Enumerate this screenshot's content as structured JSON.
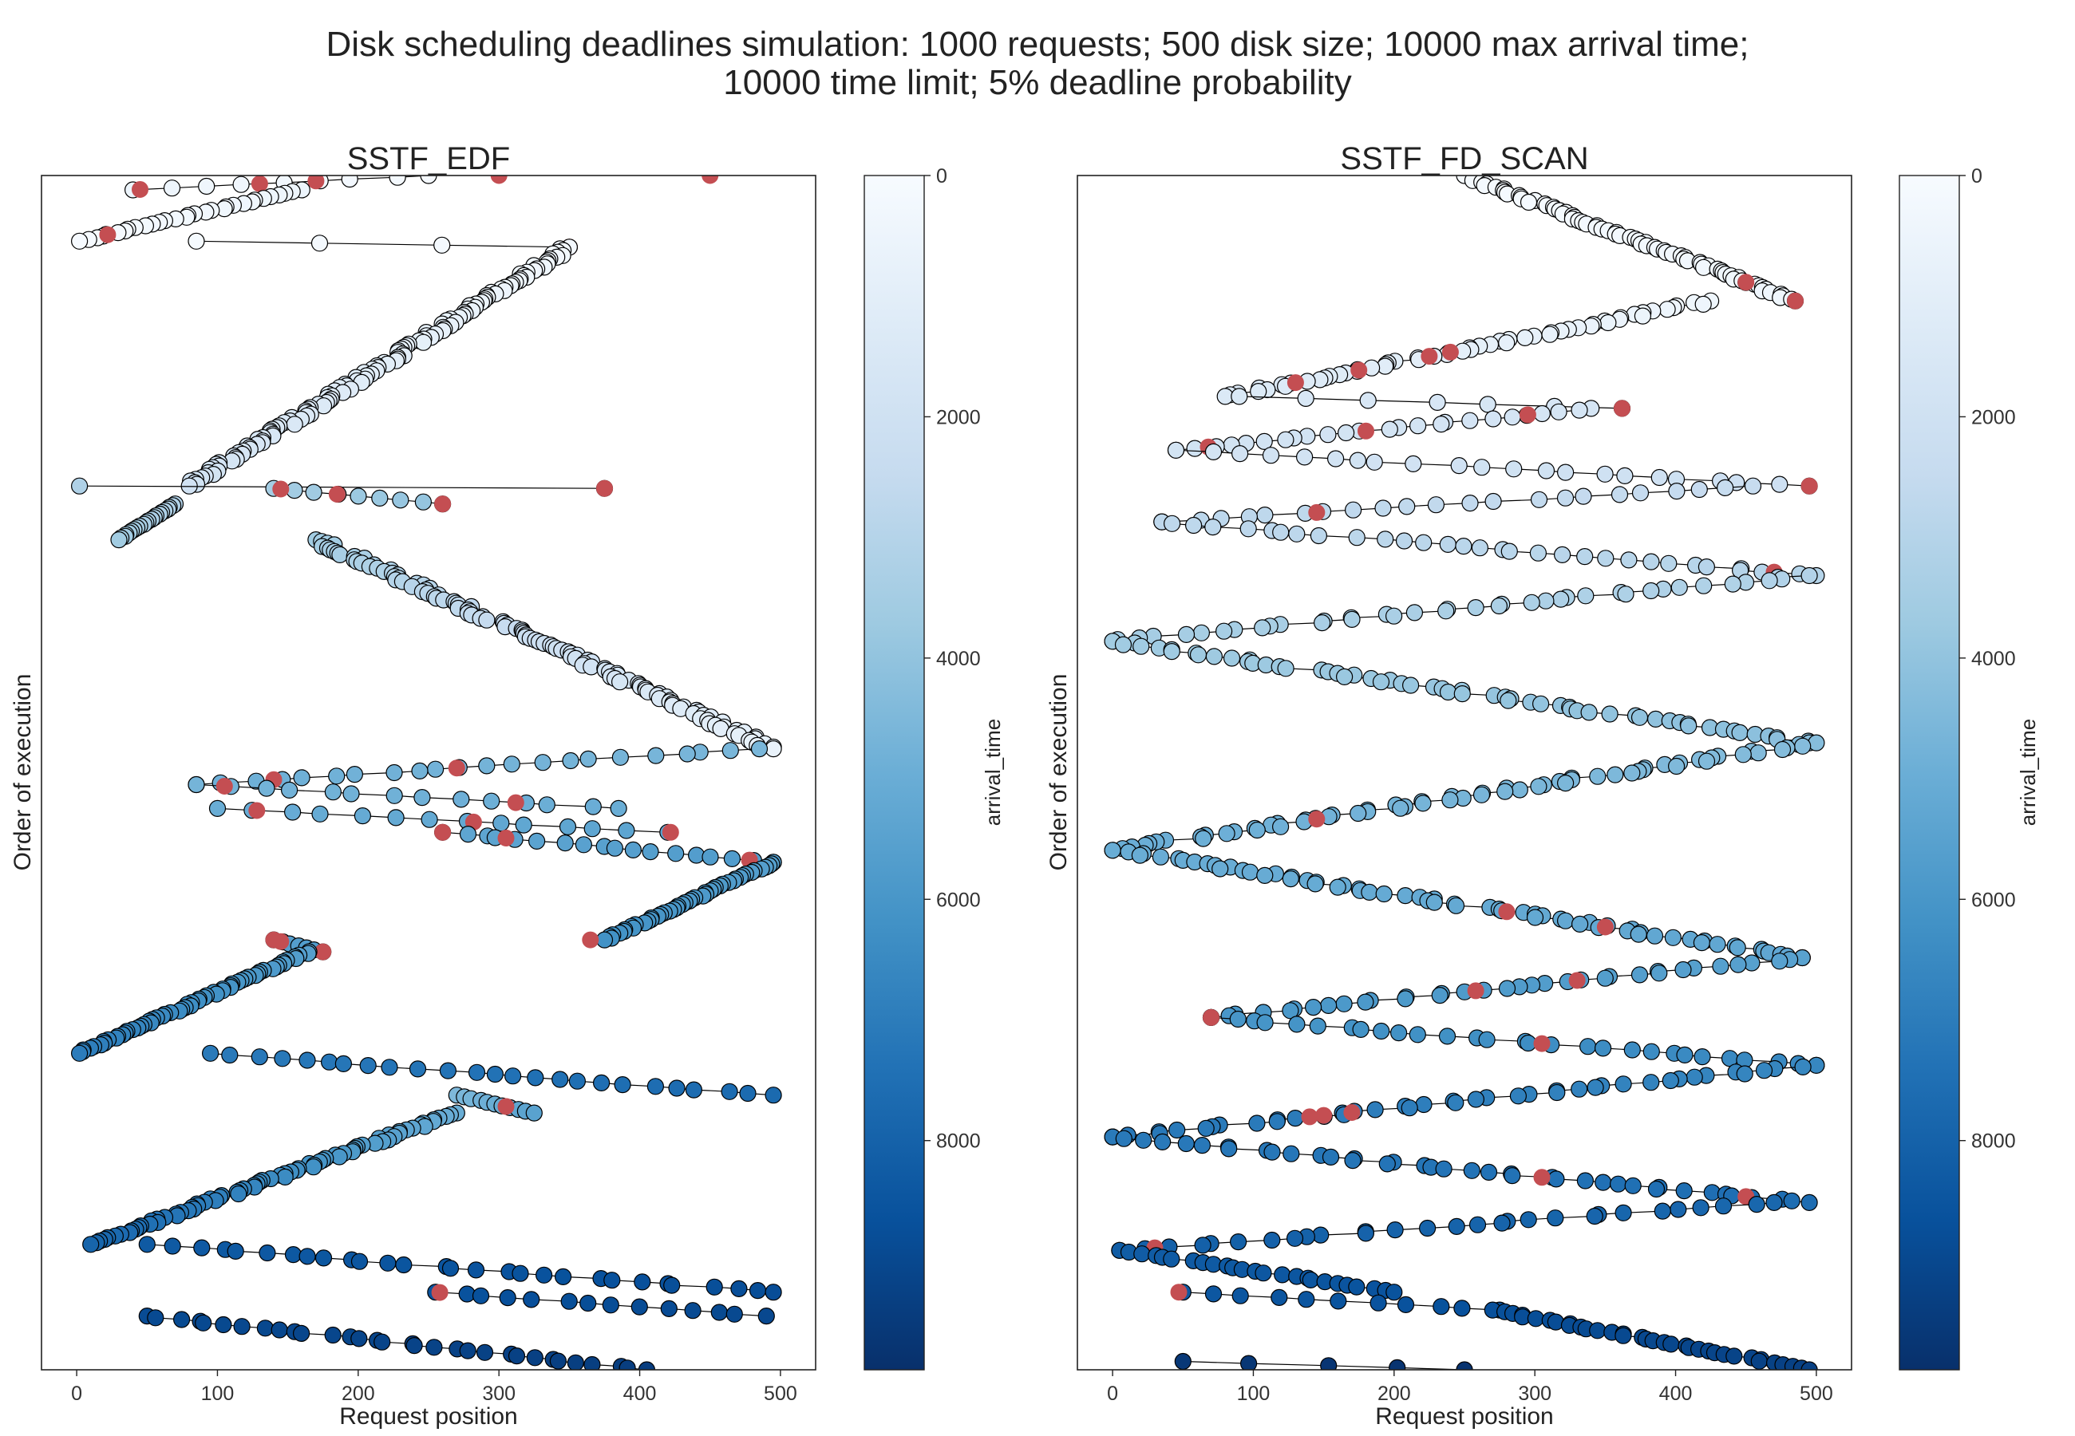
{
  "figure": {
    "title_line1": "Disk scheduling deadlines simulation: 1000 requests; 500 disk size; 10000 max arrival time;",
    "title_line2": "10000 time limit; 5% deadline probability"
  },
  "colors": {
    "deadline_marker": "#c44e52",
    "line": "#000000",
    "marker_edge": "#000000",
    "colormap": [
      "#08306b",
      "#08519c",
      "#2171b5",
      "#4292c6",
      "#6baed6",
      "#9ecae1",
      "#c6dbef",
      "#deebf7",
      "#f7fbff"
    ]
  },
  "chart_data": [
    {
      "type": "scatter",
      "title": "SSTF_EDF",
      "xlabel": "Request position",
      "ylabel": "Order of execution",
      "xlim": [
        -25,
        525
      ],
      "xticks": [
        "0",
        "100",
        "200",
        "300",
        "400",
        "500"
      ],
      "y_inverted": true,
      "ylim": [
        0,
        1000
      ],
      "connected": true,
      "color_by": "arrival_time",
      "colorbar": {
        "label": "arrival_time",
        "range": [
          0,
          9900
        ],
        "ticks": [
          "0",
          "2000",
          "4000",
          "6000",
          "8000"
        ],
        "reversed": true
      },
      "segments": [
        {
          "order": [
            0,
            12
          ],
          "x": [
            250,
            40
          ],
          "arrival": [
            120,
            500
          ],
          "deadline_x": [
            45,
            130,
            170,
            300,
            450
          ]
        },
        {
          "order": [
            12,
            55
          ],
          "x": [
            160,
            2
          ],
          "arrival": [
            500,
            50
          ],
          "deadline_x": [
            22
          ]
        },
        {
          "order": [
            55,
            60
          ],
          "x": [
            85,
            350
          ],
          "arrival": [
            100,
            200
          ],
          "deadline_x": [
            350
          ]
        },
        {
          "order": [
            60,
            260
          ],
          "x": [
            350,
            80
          ],
          "arrival": [
            200,
            1900
          ],
          "deadline_x": []
        },
        {
          "order": [
            260,
            262
          ],
          "x": [
            2,
            375
          ],
          "arrival": [
            3200,
            3800
          ],
          "deadline_x": [
            375
          ]
        },
        {
          "order": [
            262,
            275
          ],
          "x": [
            140,
            260
          ],
          "arrival": [
            3500,
            4000
          ],
          "deadline_x": [
            145,
            185,
            260
          ]
        },
        {
          "order": [
            275,
            305
          ],
          "x": [
            70,
            30
          ],
          "arrival": [
            3100,
            3600
          ],
          "deadline_x": []
        },
        {
          "order": [
            305,
            480
          ],
          "x": [
            170,
            495
          ],
          "arrival": [
            3600,
            700
          ],
          "deadline_x": []
        },
        {
          "order": [
            480,
            510
          ],
          "x": [
            485,
            85
          ],
          "arrival": [
            4600,
            4900
          ],
          "deadline_x": [
            140,
            270
          ]
        },
        {
          "order": [
            510,
            530
          ],
          "x": [
            85,
            385
          ],
          "arrival": [
            4700,
            5000
          ],
          "deadline_x": [
            312,
            105
          ]
        },
        {
          "order": [
            530,
            550
          ],
          "x": [
            100,
            420
          ],
          "arrival": [
            5000,
            5400
          ],
          "deadline_x": [
            128,
            282,
            422
          ]
        },
        {
          "order": [
            550,
            575
          ],
          "x": [
            260,
            495
          ],
          "arrival": [
            5300,
            5800
          ],
          "deadline_x": [
            260,
            305,
            478
          ]
        },
        {
          "order": [
            575,
            640
          ],
          "x": [
            495,
            375
          ],
          "arrival": [
            5600,
            6200
          ],
          "deadline_x": [
            365
          ]
        },
        {
          "order": [
            640,
            650
          ],
          "x": [
            140,
            175
          ],
          "arrival": [
            5500,
            5800
          ],
          "deadline_x": [
            140,
            145,
            175
          ]
        },
        {
          "order": [
            650,
            735
          ],
          "x": [
            165,
            2
          ],
          "arrival": [
            5600,
            7000
          ],
          "deadline_x": []
        },
        {
          "order": [
            735,
            770
          ],
          "x": [
            95,
            495
          ],
          "arrival": [
            7100,
            7700
          ],
          "deadline_x": []
        },
        {
          "order": [
            770,
            785
          ],
          "x": [
            270,
            325
          ],
          "arrival": [
            4500,
            5500
          ],
          "deadline_x": [
            305
          ]
        },
        {
          "order": [
            785,
            895
          ],
          "x": [
            270,
            10
          ],
          "arrival": [
            5000,
            7900
          ],
          "deadline_x": []
        },
        {
          "order": [
            895,
            935
          ],
          "x": [
            50,
            495
          ],
          "arrival": [
            8300,
            8800
          ],
          "deadline_x": []
        },
        {
          "order": [
            935,
            955
          ],
          "x": [
            255,
            490
          ],
          "arrival": [
            8600,
            9000
          ],
          "deadline_x": [
            258
          ]
        },
        {
          "order": [
            955,
            1000
          ],
          "x": [
            50,
            405
          ],
          "arrival": [
            8900,
            9400
          ],
          "deadline_x": []
        }
      ]
    },
    {
      "type": "scatter",
      "title": "SSTF_FD_SCAN",
      "xlabel": "Request position",
      "ylabel": "Order of execution",
      "xlim": [
        -25,
        525
      ],
      "xticks": [
        "0",
        "100",
        "200",
        "300",
        "400",
        "500"
      ],
      "y_inverted": true,
      "ylim": [
        0,
        1000
      ],
      "connected": true,
      "color_by": "arrival_time",
      "colorbar": {
        "label": "arrival_time",
        "range": [
          0,
          9900
        ],
        "ticks": [
          "0",
          "2000",
          "4000",
          "6000",
          "8000"
        ],
        "reversed": true
      },
      "segments": [
        {
          "order": [
            0,
            105
          ],
          "x": [
            250,
            485
          ],
          "arrival": [
            100,
            400
          ],
          "deadline_x": [
            450,
            485
          ]
        },
        {
          "order": [
            105,
            185
          ],
          "x": [
            425,
            80
          ],
          "arrival": [
            400,
            1400
          ],
          "deadline_x": [
            240,
            225,
            175,
            130
          ]
        },
        {
          "order": [
            185,
            195
          ],
          "x": [
            90,
            362
          ],
          "arrival": [
            1500,
            1700
          ],
          "deadline_x": [
            362
          ]
        },
        {
          "order": [
            195,
            230
          ],
          "x": [
            340,
            45
          ],
          "arrival": [
            1700,
            1900
          ],
          "deadline_x": [
            68,
            180,
            295
          ]
        },
        {
          "order": [
            230,
            260
          ],
          "x": [
            45,
            495
          ],
          "arrival": [
            1800,
            2100
          ],
          "deadline_x": [
            495
          ]
        },
        {
          "order": [
            260,
            290
          ],
          "x": [
            455,
            35
          ],
          "arrival": [
            2400,
            2800
          ],
          "deadline_x": [
            145
          ]
        },
        {
          "order": [
            290,
            335
          ],
          "x": [
            35,
            500
          ],
          "arrival": [
            2700,
            3000
          ],
          "deadline_x": [
            470
          ]
        },
        {
          "order": [
            335,
            390
          ],
          "x": [
            495,
            0
          ],
          "arrival": [
            3100,
            3500
          ],
          "deadline_x": []
        },
        {
          "order": [
            390,
            475
          ],
          "x": [
            0,
            495
          ],
          "arrival": [
            3600,
            4200
          ],
          "deadline_x": []
        },
        {
          "order": [
            475,
            565
          ],
          "x": [
            500,
            0
          ],
          "arrival": [
            4300,
            5000
          ],
          "deadline_x": [
            145
          ]
        },
        {
          "order": [
            565,
            655
          ],
          "x": [
            0,
            490
          ],
          "arrival": [
            5000,
            5300
          ],
          "deadline_x": [
            280,
            350,
            490
          ]
        },
        {
          "order": [
            655,
            705
          ],
          "x": [
            490,
            70
          ],
          "arrival": [
            5500,
            6000
          ],
          "deadline_x": [
            258,
            330
          ]
        },
        {
          "order": [
            705,
            745
          ],
          "x": [
            70,
            500
          ],
          "arrival": [
            6000,
            6600
          ],
          "deadline_x": [
            70,
            305
          ]
        },
        {
          "order": [
            745,
            805
          ],
          "x": [
            500,
            0
          ],
          "arrival": [
            6600,
            7200
          ],
          "deadline_x": [
            140,
            150,
            170
          ]
        },
        {
          "order": [
            805,
            860
          ],
          "x": [
            0,
            495
          ],
          "arrival": [
            7100,
            7600
          ],
          "deadline_x": [
            450,
            305
          ]
        },
        {
          "order": [
            860,
            900
          ],
          "x": [
            470,
            5
          ],
          "arrival": [
            7800,
            8100
          ],
          "deadline_x": [
            30
          ]
        },
        {
          "order": [
            900,
            935
          ],
          "x": [
            5,
            200
          ],
          "arrival": [
            8200,
            8600
          ],
          "deadline_x": []
        },
        {
          "order": [
            935,
            950
          ],
          "x": [
            50,
            275
          ],
          "arrival": [
            8400,
            8700
          ],
          "deadline_x": [
            47
          ]
        },
        {
          "order": [
            950,
            1000
          ],
          "x": [
            270,
            495
          ],
          "arrival": [
            8700,
            9300
          ],
          "deadline_x": []
        },
        {
          "order": [
            993,
            1000
          ],
          "x": [
            50,
            250
          ],
          "arrival": [
            9600,
            9800
          ],
          "deadline_x": []
        }
      ]
    }
  ]
}
